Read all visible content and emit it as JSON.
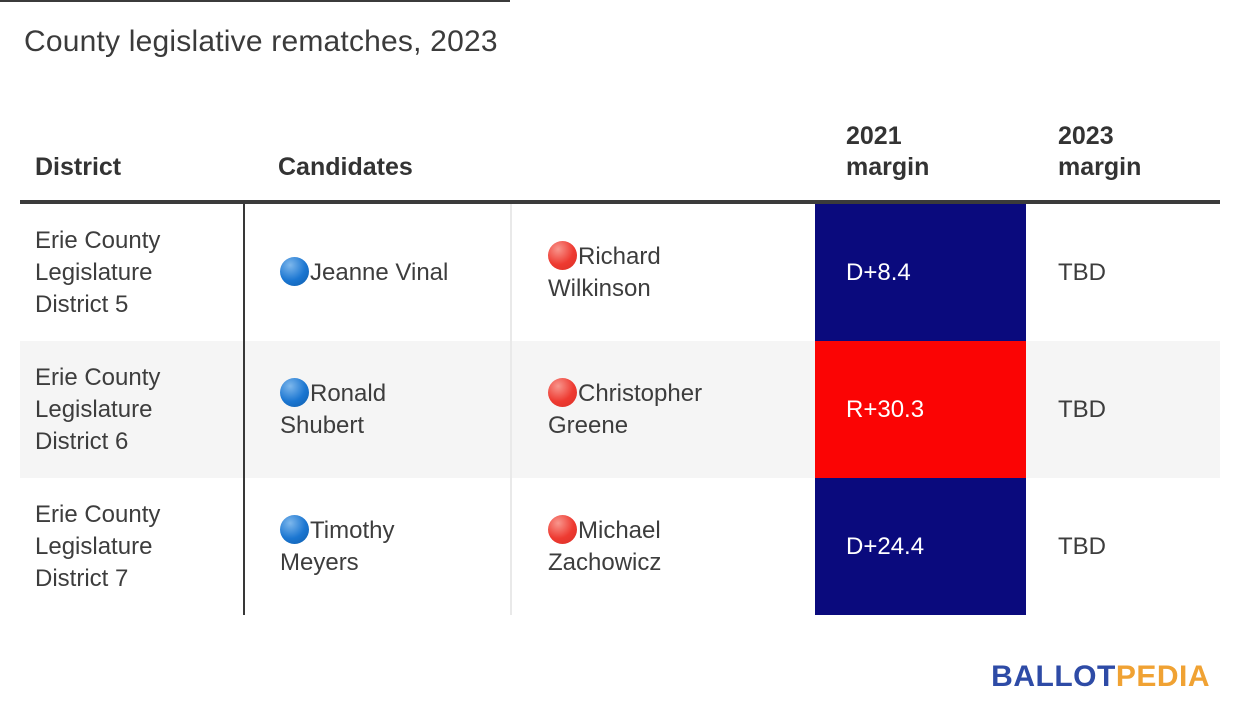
{
  "title": "County legislative rematches, 2023",
  "table": {
    "headers": {
      "district": "District",
      "candidates": "Candidates",
      "margin_2021": "2021 margin",
      "margin_2023": "2023 margin"
    },
    "rows": [
      {
        "district": "Erie County Legislature District 5",
        "dem_candidate": "Jeanne Vinal",
        "rep_candidate": "Richard Wilkinson",
        "margin_2021": "D+8.4",
        "margin_2023": "TBD"
      },
      {
        "district": "Erie County Legislature District 6",
        "dem_candidate": "Ronald Shubert",
        "rep_candidate": "Christopher Greene",
        "margin_2021": "R+30.3",
        "margin_2023": "TBD"
      },
      {
        "district": "Erie County Legislature District 7",
        "dem_candidate": "Timothy Meyers",
        "rep_candidate": "Michael Zachowicz",
        "margin_2021": "D+24.4",
        "margin_2023": "TBD"
      }
    ]
  },
  "colors": {
    "dem_margin_bg": "#0a0a7d",
    "rep_margin_bg": "#fb0404",
    "dem_dot": "#1b76d1",
    "rep_dot": "#ee3a31",
    "zebra_row_bg": "#f5f5f5",
    "header_line": "#3b3b3b"
  },
  "logo": {
    "ballot": "BALLOT",
    "pedia": "PEDIA",
    "ballot_color": "#2e4ba6",
    "pedia_color": "#f0a233"
  }
}
